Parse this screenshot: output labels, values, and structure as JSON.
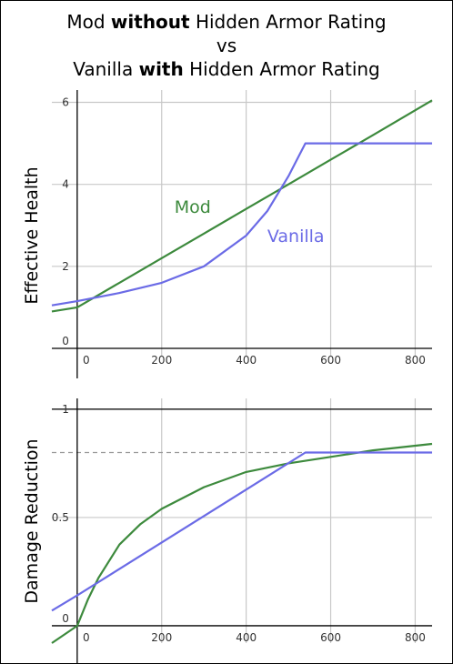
{
  "title": {
    "line1_pre": "Mod ",
    "line1_bold": "without",
    "line1_post": " Hidden Armor Rating",
    "line2": "vs",
    "line3_pre": "Vanilla ",
    "line3_bold": "with",
    "line3_post": " Hidden Armor Rating"
  },
  "colors": {
    "mod": "#3d8a3d",
    "vanilla": "#6b6be6",
    "grid": "#c8c8c8"
  },
  "chart_data": [
    {
      "type": "line",
      "title": "",
      "xlabel": "",
      "ylabel": "Effective Health",
      "xlim": [
        -60,
        840
      ],
      "ylim": [
        -0.2,
        6.3
      ],
      "xticks": [
        0,
        200,
        400,
        600,
        800
      ],
      "xtick_labels": [
        "0",
        "200",
        "400",
        "600",
        "800"
      ],
      "yticks": [
        0,
        2,
        4,
        6
      ],
      "ytick_labels": [
        "0",
        "2",
        "4",
        "6"
      ],
      "grid": true,
      "series": [
        {
          "name": "Mod",
          "color": "#3d8a3d",
          "x": [
            -60,
            0,
            100,
            200,
            300,
            400,
            500,
            600,
            700,
            840
          ],
          "y": [
            0.9,
            1.0,
            1.6,
            2.2,
            2.8,
            3.4,
            4.0,
            4.6,
            5.2,
            6.05
          ]
        },
        {
          "name": "Vanilla",
          "color": "#6b6be6",
          "x": [
            -60,
            0,
            100,
            200,
            300,
            400,
            450,
            500,
            520,
            540,
            600,
            700,
            840
          ],
          "y": [
            1.05,
            1.15,
            1.35,
            1.6,
            2.0,
            2.75,
            3.35,
            4.2,
            4.6,
            5.0,
            5.0,
            5.0,
            5.0
          ]
        }
      ],
      "annotations": [
        {
          "text": "Mod",
          "series": "Mod",
          "x": 230,
          "y": 3.3
        },
        {
          "text": "Vanilla",
          "series": "Vanilla",
          "x": 450,
          "y": 2.6
        }
      ]
    },
    {
      "type": "line",
      "title": "",
      "xlabel": "",
      "ylabel": "Damage Reduction",
      "xlim": [
        -60,
        840
      ],
      "ylim": [
        -0.08,
        1.05
      ],
      "xticks": [
        0,
        200,
        400,
        600,
        800
      ],
      "xtick_labels": [
        "0",
        "200",
        "400",
        "600",
        "800"
      ],
      "yticks": [
        0,
        0.5,
        1
      ],
      "ytick_labels": [
        "0",
        "0.5",
        "1"
      ],
      "grid": true,
      "reference_lines": [
        {
          "y": 1.0,
          "style": "solid"
        },
        {
          "y": 0.8,
          "style": "dashed"
        }
      ],
      "series": [
        {
          "name": "Mod",
          "color": "#3d8a3d",
          "x": [
            -60,
            0,
            25,
            50,
            100,
            150,
            200,
            250,
            300,
            400,
            500,
            600,
            700,
            840
          ],
          "y": [
            -0.08,
            0.0,
            0.12,
            0.22,
            0.375,
            0.47,
            0.54,
            0.59,
            0.64,
            0.71,
            0.75,
            0.78,
            0.81,
            0.84
          ]
        },
        {
          "name": "Vanilla",
          "color": "#6b6be6",
          "x": [
            -60,
            0,
            540,
            840
          ],
          "y": [
            0.07,
            0.14,
            0.8,
            0.8
          ]
        }
      ]
    }
  ]
}
